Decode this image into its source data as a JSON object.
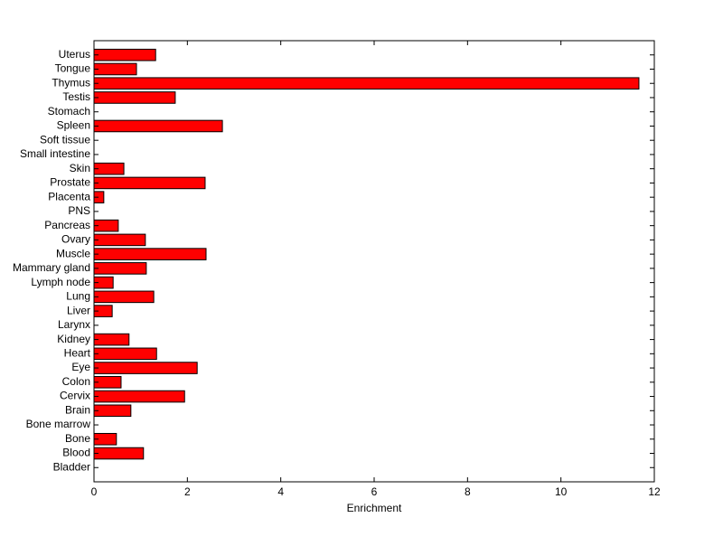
{
  "chart_data": {
    "type": "barh",
    "xlabel": "Enrichment",
    "categories": [
      "Bladder",
      "Blood",
      "Bone",
      "Bone marrow",
      "Brain",
      "Cervix",
      "Colon",
      "Eye",
      "Heart",
      "Kidney",
      "Larynx",
      "Liver",
      "Lung",
      "Lymph node",
      "Mammary gland",
      "Muscle",
      "Ovary",
      "Pancreas",
      "PNS",
      "Placenta",
      "Prostate",
      "Skin",
      "Small intestine",
      "Soft tissue",
      "Spleen",
      "Stomach",
      "Testis",
      "Thymus",
      "Tongue",
      "Uterus"
    ],
    "values": [
      0,
      1.06,
      0.48,
      0,
      0.79,
      1.94,
      0.58,
      2.21,
      1.34,
      0.75,
      0,
      0.39,
      1.28,
      0.41,
      1.12,
      2.4,
      1.1,
      0.52,
      0,
      0.21,
      2.38,
      0.64,
      0,
      0,
      2.75,
      0,
      1.74,
      11.67,
      0.91,
      1.32
    ],
    "color": "#ff0000",
    "xlim": [
      0,
      12
    ],
    "xticks": [
      0,
      2,
      4,
      6,
      8,
      10,
      12
    ]
  }
}
